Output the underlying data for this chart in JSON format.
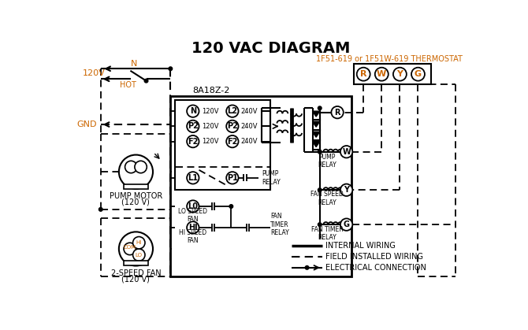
{
  "title": "120 VAC DIAGRAM",
  "bg_color": "#ffffff",
  "black": "#000000",
  "orange": "#cc6600",
  "thermostat_label": "1F51-619 or 1F51W-619 THERMOSTAT",
  "thermostat_terminals": [
    "R",
    "W",
    "Y",
    "G"
  ],
  "control_box_label": "8A18Z-2",
  "legend_items": [
    "INTERNAL WIRING",
    "FIELD INSTALLED WIRING",
    "ELECTRICAL CONNECTION"
  ]
}
